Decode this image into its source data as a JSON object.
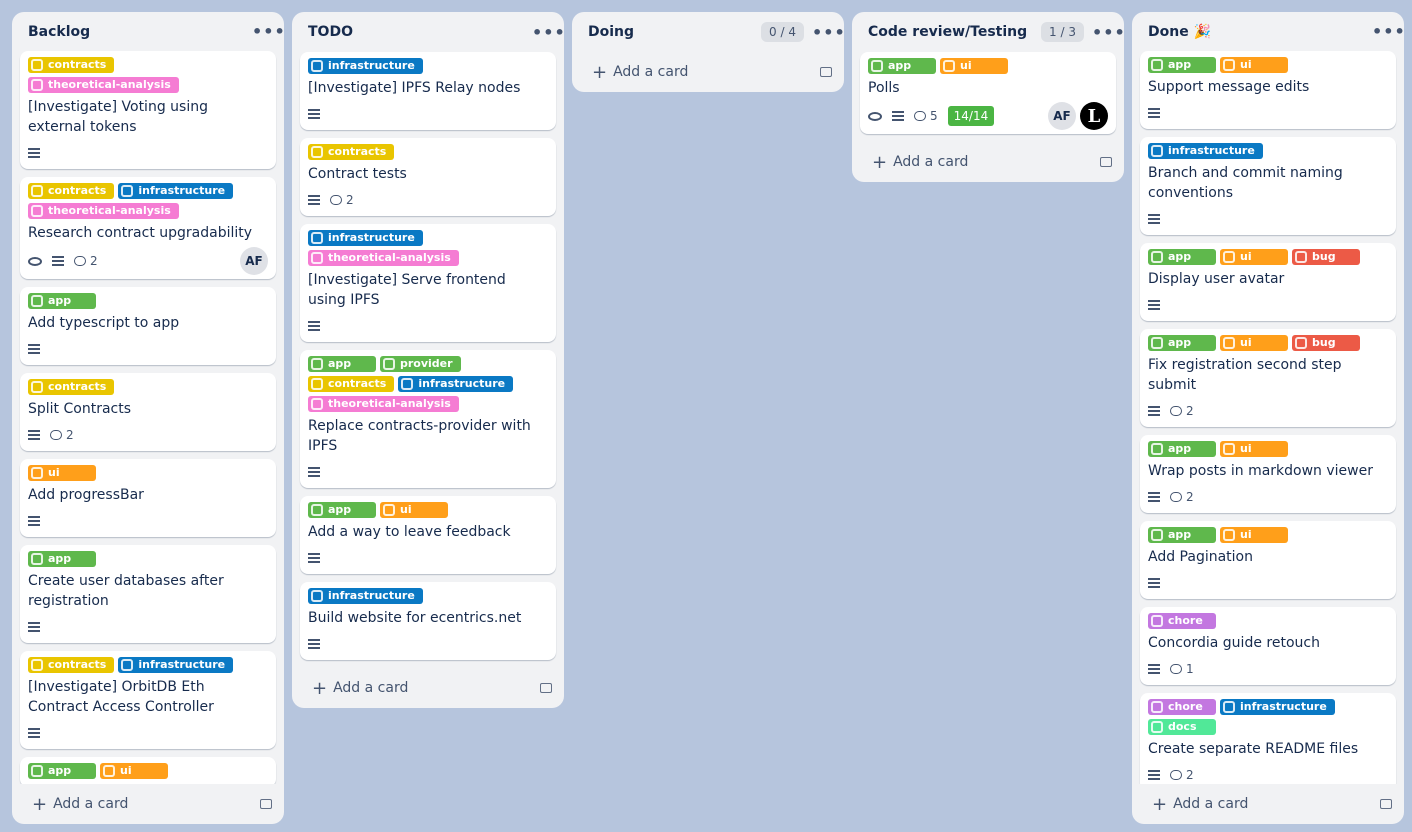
{
  "label_colors": {
    "contracts": "#e9c500",
    "theoretical-analysis": "#f57cd3",
    "infrastructure": "#0a79c4",
    "app": "#5fb84c",
    "ui": "#ff9f1a",
    "bug": "#ec5a46",
    "provider": "#5fb84c",
    "chore": "#c377e0",
    "docs": "#51e898"
  },
  "lists": [
    {
      "title": "Backlog",
      "add": "Add a card",
      "cards": [
        {
          "labels": [
            "contracts",
            "theoretical-analysis"
          ],
          "title": "[Investigate] Voting using external tokens",
          "description": true
        },
        {
          "labels": [
            "contracts",
            "infrastructure",
            "theoretical-analysis"
          ],
          "title": "Research contract upgradability",
          "watch": true,
          "description": true,
          "comments": 2,
          "members": [
            "AF"
          ]
        },
        {
          "labels": [
            "app"
          ],
          "title": "Add typescript to app",
          "description": true
        },
        {
          "labels": [
            "contracts"
          ],
          "title": "Split Contracts",
          "description": true,
          "comments": 2
        },
        {
          "labels": [
            "ui"
          ],
          "title": "Add progressBar",
          "description": true
        },
        {
          "labels": [
            "app"
          ],
          "title": "Create user databases after registration",
          "description": true
        },
        {
          "labels": [
            "contracts",
            "infrastructure"
          ],
          "title": "[Investigate] OrbitDB Eth Contract Access Controller",
          "description": true
        },
        {
          "labels": [
            "app",
            "ui"
          ]
        }
      ]
    },
    {
      "title": "TODO",
      "add": "Add a card",
      "cards": [
        {
          "labels": [
            "infrastructure"
          ],
          "title": "[Investigate] IPFS Relay nodes",
          "description": true
        },
        {
          "labels": [
            "contracts"
          ],
          "title": "Contract tests",
          "description": true,
          "comments": 2
        },
        {
          "labels": [
            "infrastructure",
            "theoretical-analysis"
          ],
          "title": "[Investigate] Serve frontend using IPFS",
          "description": true
        },
        {
          "labels": [
            "app",
            "provider",
            "contracts",
            "infrastructure",
            "theoretical-analysis"
          ],
          "title": "Replace contracts-provider with IPFS",
          "description": true
        },
        {
          "labels": [
            "app",
            "ui"
          ],
          "title": "Add a way to leave feedback",
          "description": true
        },
        {
          "labels": [
            "infrastructure"
          ],
          "title": "Build website for ecentrics.net",
          "description": true
        }
      ]
    },
    {
      "title": "Doing",
      "limit": "0 / 4",
      "add": "Add a card",
      "cards": []
    },
    {
      "title": "Code review/Testing",
      "limit": "1 / 3",
      "add": "Add a card",
      "cards": [
        {
          "labels": [
            "app",
            "ui"
          ],
          "title": "Polls",
          "watch": true,
          "description": true,
          "comments": 5,
          "checklist": "14/14",
          "members": [
            "AF",
            "L"
          ]
        }
      ]
    },
    {
      "title": "Done 🎉",
      "add": "Add a card",
      "cards": [
        {
          "labels": [
            "app",
            "ui"
          ],
          "title": "Support message edits",
          "description": true
        },
        {
          "labels": [
            "infrastructure"
          ],
          "title": "Branch and commit naming conventions",
          "description": true
        },
        {
          "labels": [
            "app",
            "ui",
            "bug"
          ],
          "title": "Display user avatar",
          "description": true
        },
        {
          "labels": [
            "app",
            "ui",
            "bug"
          ],
          "title": "Fix registration second step submit",
          "description": true,
          "comments": 2
        },
        {
          "labels": [
            "app",
            "ui"
          ],
          "title": "Wrap posts in markdown viewer",
          "description": true,
          "comments": 2
        },
        {
          "labels": [
            "app",
            "ui"
          ],
          "title": "Add Pagination",
          "description": true
        },
        {
          "labels": [
            "chore"
          ],
          "title": "Concordia guide retouch",
          "description": true,
          "comments": 1
        },
        {
          "labels": [
            "chore",
            "infrastructure",
            "docs"
          ],
          "title": "Create separate README files",
          "description": true,
          "comments": 2
        }
      ]
    }
  ]
}
